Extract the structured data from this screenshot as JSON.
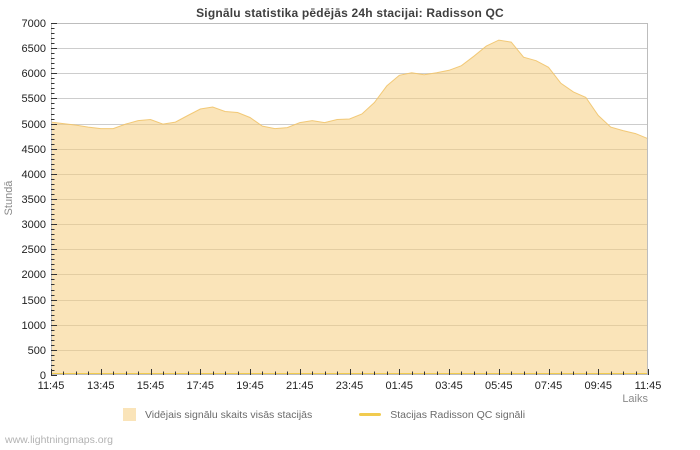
{
  "page": {
    "footer": "www.lightningmaps.org"
  },
  "colors": {
    "area_fill": "#F6CD7F",
    "area_fill_opacity": 0.55,
    "area_edge": "#F1C46C",
    "station_line": "#F1CB4F",
    "grid": "#CDCDCD",
    "frame": "#BDBDBD",
    "tick": "#333333",
    "tick_label": "#222222",
    "title_text": "#3F3F3F",
    "muted_text": "#8A8A8A"
  },
  "chart_data": {
    "type": "area",
    "title": "Signālu statistika pēdējās 24h stacijai: Radisson QC",
    "xlabel": "Laiks",
    "ylabel": "Stundā",
    "ylim": [
      0,
      7000
    ],
    "y_tick_step": 500,
    "y_minor_step": 100,
    "x_minor_every_minutes": 30,
    "grid": true,
    "legend_position": "bottom",
    "x": [
      "11:45",
      "12:15",
      "12:45",
      "13:15",
      "13:45",
      "14:15",
      "14:45",
      "15:15",
      "15:45",
      "16:15",
      "16:45",
      "17:15",
      "17:45",
      "18:15",
      "18:45",
      "19:15",
      "19:45",
      "20:15",
      "20:45",
      "21:15",
      "21:45",
      "22:15",
      "22:45",
      "23:15",
      "23:45",
      "00:15",
      "00:45",
      "01:15",
      "01:45",
      "02:15",
      "02:45",
      "03:15",
      "03:45",
      "04:15",
      "04:45",
      "05:15",
      "05:45",
      "06:15",
      "06:45",
      "07:15",
      "07:45",
      "08:15",
      "08:45",
      "09:15",
      "09:45",
      "10:15",
      "10:45",
      "11:15",
      "11:45"
    ],
    "x_tick_labels": [
      "11:45",
      "13:45",
      "15:45",
      "17:45",
      "19:45",
      "21:45",
      "23:45",
      "01:45",
      "03:45",
      "05:45",
      "07:45",
      "09:45",
      "11:45"
    ],
    "x_major_every_points": 4,
    "series": [
      {
        "name": "Vidējais signālu skaits visās stacijās",
        "type": "area",
        "values": [
          5030,
          5000,
          4970,
          4930,
          4900,
          4900,
          4990,
          5060,
          5080,
          4990,
          5030,
          5160,
          5290,
          5330,
          5240,
          5220,
          5120,
          4950,
          4900,
          4920,
          5020,
          5060,
          5020,
          5080,
          5090,
          5190,
          5420,
          5750,
          5960,
          6010,
          5970,
          6010,
          6060,
          6150,
          6340,
          6540,
          6660,
          6620,
          6320,
          6250,
          6120,
          5800,
          5630,
          5520,
          5160,
          4930,
          4860,
          4800,
          4700
        ]
      },
      {
        "name": "Stacijas Radisson QC signāli",
        "type": "line",
        "values": [
          0,
          0,
          0,
          0,
          0,
          0,
          0,
          0,
          0,
          0,
          0,
          0,
          0,
          0,
          0,
          0,
          0,
          0,
          0,
          0,
          0,
          0,
          0,
          0,
          0,
          0,
          0,
          0,
          0,
          0,
          0,
          0,
          0,
          0,
          0,
          0,
          0,
          0,
          0,
          0,
          0,
          0,
          0,
          0,
          0,
          0,
          0,
          0,
          0
        ]
      }
    ]
  }
}
